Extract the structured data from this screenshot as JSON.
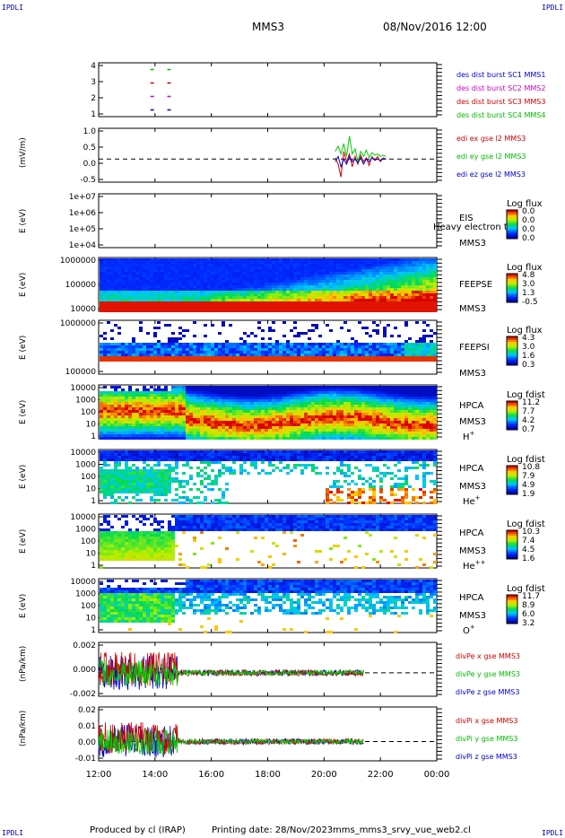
{
  "header": {
    "corner_left_top": "IPDLI",
    "corner_right_top": "IPDLI",
    "corner_left_bottom": "IPDLI",
    "corner_right_bottom": "IPDLI",
    "spacecraft": "MMS3",
    "datetime": "08/Nov/2016 12:00"
  },
  "footer": {
    "produced": "Produced by cl (IRAP)",
    "printing": "Printing date: 28/Nov/2023",
    "file": "mms_mms3_srvy_vue_web2.cl"
  },
  "time_axis": {
    "ticks": [
      "12:00",
      "14:00",
      "16:00",
      "18:00",
      "20:00",
      "22:00",
      "00:00"
    ],
    "range_hours": [
      12,
      24
    ]
  },
  "colors": {
    "sc1": "#0000cc",
    "sc2": "#cc00cc",
    "sc3": "#cc0000",
    "sc4": "#00bb00",
    "x": "#cc0000",
    "y": "#00cc00",
    "z": "#0000cc",
    "text_blue": "#0000aa"
  },
  "chart_data": [
    {
      "id": "burst",
      "type": "scatter",
      "ylim": [
        0.5,
        4.5
      ],
      "yticks": [
        "4",
        "3",
        "2",
        "1"
      ],
      "legend": [
        {
          "label": "des dist burst SC1 MMS1",
          "color": "#0000cc"
        },
        {
          "label": "des dist burst SC2 MMS2",
          "color": "#cc00cc"
        },
        {
          "label": "des dist burst SC3 MMS3",
          "color": "#cc0000"
        },
        {
          "label": "des dist burst SC4 MMS4",
          "color": "#00bb00"
        }
      ],
      "series": [
        {
          "level": 4,
          "color": "#00bb00",
          "x": [
            13.9,
            14.5
          ]
        },
        {
          "level": 3,
          "color": "#cc0000",
          "x": [
            13.9,
            14.5
          ]
        },
        {
          "level": 2,
          "color": "#cc00cc",
          "x": [
            13.9,
            14.5
          ]
        },
        {
          "level": 1,
          "color": "#0000cc",
          "x": [
            13.9,
            14.5
          ]
        }
      ]
    },
    {
      "id": "edi",
      "type": "line",
      "ylabel": "(mV/m)",
      "ylim": [
        -0.9,
        1.2
      ],
      "yticks": [
        "1.0",
        "0.5",
        "0.0",
        "-0.5"
      ],
      "legend": [
        {
          "label": "edi ex gse l2 MMS3",
          "color": "#cc0000"
        },
        {
          "label": "edi ey gse l2 MMS3",
          "color": "#00bb00"
        },
        {
          "label": "edi ez gse l2 MMS3",
          "color": "#0000cc"
        }
      ],
      "x": [
        20.4,
        20.5,
        20.6,
        20.7,
        20.8,
        20.9,
        21.0,
        21.1,
        21.2,
        21.3,
        21.4,
        21.5,
        21.6,
        21.7,
        21.8,
        21.9,
        22.0,
        22.1,
        22.2
      ],
      "ex": [
        0.05,
        -0.2,
        -0.7,
        0.3,
        -0.1,
        0.2,
        -0.3,
        0.1,
        -0.2,
        0.15,
        -0.1,
        0.05,
        -0.25,
        0.1,
        -0.05,
        0.1,
        -0.1,
        0.05,
        0.0
      ],
      "ey": [
        0.3,
        0.5,
        0.2,
        0.6,
        0.1,
        0.9,
        0.2,
        0.4,
        -0.1,
        0.3,
        0.1,
        0.35,
        0.05,
        0.25,
        0.15,
        0.2,
        0.1,
        0.15,
        0.1
      ],
      "ez": [
        -0.1,
        0.1,
        -0.3,
        0.0,
        -0.2,
        0.1,
        -0.1,
        0.0,
        -0.15,
        0.05,
        -0.2,
        0.0,
        -0.1,
        0.05,
        -0.05,
        0.0,
        -0.05,
        0.0,
        0.0
      ]
    },
    {
      "id": "eis",
      "type": "heatmap",
      "ylabel": "E (eV)",
      "yticks": [
        "1e+07",
        "1e+06",
        "1e+05",
        "1e+04"
      ],
      "labels": [
        "EIS",
        "MMS3"
      ],
      "overlay_text": "Heavy electron to",
      "colorbar_title": "Log flux",
      "colorbar_ticks": [
        "0.0",
        "0.0",
        "0.0",
        "0.0"
      ]
    },
    {
      "id": "feepse",
      "type": "heatmap",
      "ylabel": "E (eV)",
      "yticks": [
        "1000000",
        "100000",
        "10000"
      ],
      "labels": [
        "FEEPSE",
        "MMS3"
      ],
      "colorbar_title": "Log flux",
      "colorbar_ticks": [
        "4.8",
        "3.0",
        "1.3",
        "-0.5"
      ]
    },
    {
      "id": "feepsi",
      "type": "heatmap",
      "ylabel": "E (eV)",
      "yticks": [
        "1000000",
        "100000"
      ],
      "labels": [
        "FEEPSI",
        "MMS3"
      ],
      "colorbar_title": "Log flux",
      "colorbar_ticks": [
        "4.3",
        "3.0",
        "1.6",
        "0.3"
      ]
    },
    {
      "id": "hpca_h",
      "type": "heatmap",
      "ylabel": "E (eV)",
      "yticks": [
        "10000",
        "1000",
        "100",
        "10",
        "1"
      ],
      "labels": [
        "HPCA",
        "MMS3"
      ],
      "species": "H",
      "species_charge": "+",
      "colorbar_title": "Log fdist",
      "colorbar_ticks": [
        "11.2",
        "7.7",
        "4.2",
        "0.7"
      ]
    },
    {
      "id": "hpca_he1",
      "type": "heatmap",
      "ylabel": "E (eV)",
      "yticks": [
        "10000",
        "1000",
        "100",
        "10",
        "1"
      ],
      "labels": [
        "HPCA",
        "MMS3"
      ],
      "species": "He",
      "species_charge": "+",
      "colorbar_title": "Log fdist",
      "colorbar_ticks": [
        "10.8",
        "7.9",
        "4.9",
        "1.9"
      ]
    },
    {
      "id": "hpca_he2",
      "type": "heatmap",
      "ylabel": "E (eV)",
      "yticks": [
        "10000",
        "1000",
        "100",
        "10",
        "1"
      ],
      "labels": [
        "HPCA",
        "MMS3"
      ],
      "species": "He",
      "species_charge": "++",
      "colorbar_title": "Log fdist",
      "colorbar_ticks": [
        "10.3",
        "7.4",
        "4.5",
        "1.6"
      ]
    },
    {
      "id": "hpca_o",
      "type": "heatmap",
      "ylabel": "E (eV)",
      "yticks": [
        "10000",
        "1000",
        "100",
        "10",
        "1"
      ],
      "labels": [
        "HPCA",
        "MMS3"
      ],
      "species": "O",
      "species_charge": "+",
      "colorbar_title": "Log fdist",
      "colorbar_ticks": [
        "11.7",
        "8.9",
        "6.0",
        "3.2"
      ]
    },
    {
      "id": "divpe",
      "type": "line",
      "ylabel": "(nPa/km)",
      "ylim": [
        -0.0027,
        0.0035
      ],
      "yticks": [
        "0.002",
        "0.000",
        "-0.002"
      ],
      "legend": [
        {
          "label": "divPe x gse MMS3",
          "color": "#cc0000"
        },
        {
          "label": "divPe y gse MMS3",
          "color": "#00bb00"
        },
        {
          "label": "divPe z gse MMS3",
          "color": "#0000cc"
        }
      ]
    },
    {
      "id": "divpi",
      "type": "line",
      "ylabel": "(nPa/km)",
      "ylim": [
        -0.014,
        0.025
      ],
      "yticks": [
        "0.02",
        "0.01",
        "0.00",
        "-0.01"
      ],
      "legend": [
        {
          "label": "divPi x gse MMS3",
          "color": "#cc0000"
        },
        {
          "label": "divPi y gse MMS3",
          "color": "#00bb00"
        },
        {
          "label": "divPi z gse MMS3",
          "color": "#0000cc"
        }
      ]
    }
  ]
}
